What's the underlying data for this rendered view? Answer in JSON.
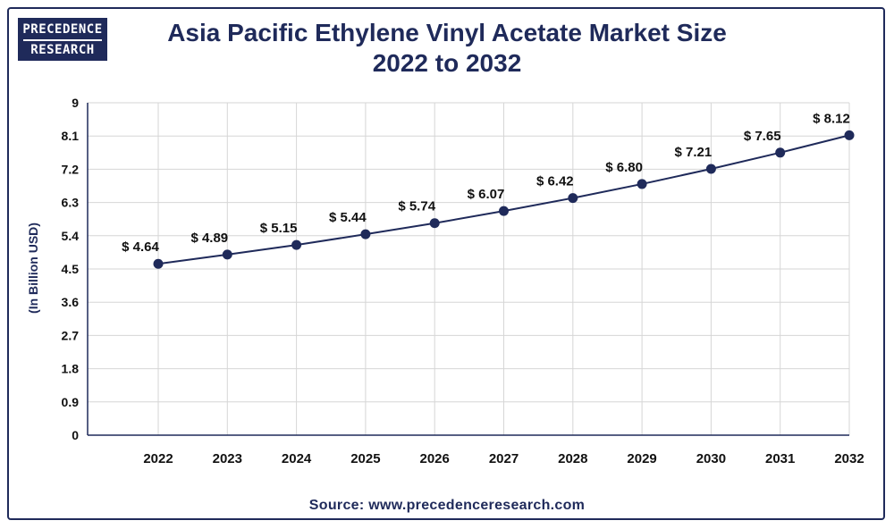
{
  "logo": {
    "line1": "PRECEDENCE",
    "line2": "RESEARCH"
  },
  "source": "Source: www.precedenceresearch.com",
  "colors": {
    "primary": "#1f2a5a",
    "grid": "#d6d6d6"
  },
  "chart_data": {
    "type": "line",
    "title_line1": "Asia Pacific Ethylene Vinyl Acetate Market Size",
    "title_line2": "2022 to 2032",
    "ylabel": "(In Billion USD)",
    "xlabel": "",
    "ylim": [
      0,
      9
    ],
    "yticks": [
      "0",
      "0.9",
      "1.8",
      "2.7",
      "3.6",
      "4.5",
      "5.4",
      "6.3",
      "7.2",
      "8.1",
      "9"
    ],
    "categories": [
      "2022",
      "2023",
      "2024",
      "2025",
      "2026",
      "2027",
      "2028",
      "2029",
      "2030",
      "2031",
      "2032"
    ],
    "values": [
      4.64,
      4.89,
      5.15,
      5.44,
      5.74,
      6.07,
      6.42,
      6.8,
      7.21,
      7.65,
      8.12
    ],
    "data_labels": [
      "$ 4.64",
      "$ 4.89",
      "$ 5.15",
      "$ 5.44",
      "$ 5.74",
      "$ 6.07",
      "$ 6.42",
      "$ 6.80",
      "$ 7.21",
      "$ 7.65",
      "$ 8.12"
    ],
    "grid": true,
    "legend": "none"
  }
}
